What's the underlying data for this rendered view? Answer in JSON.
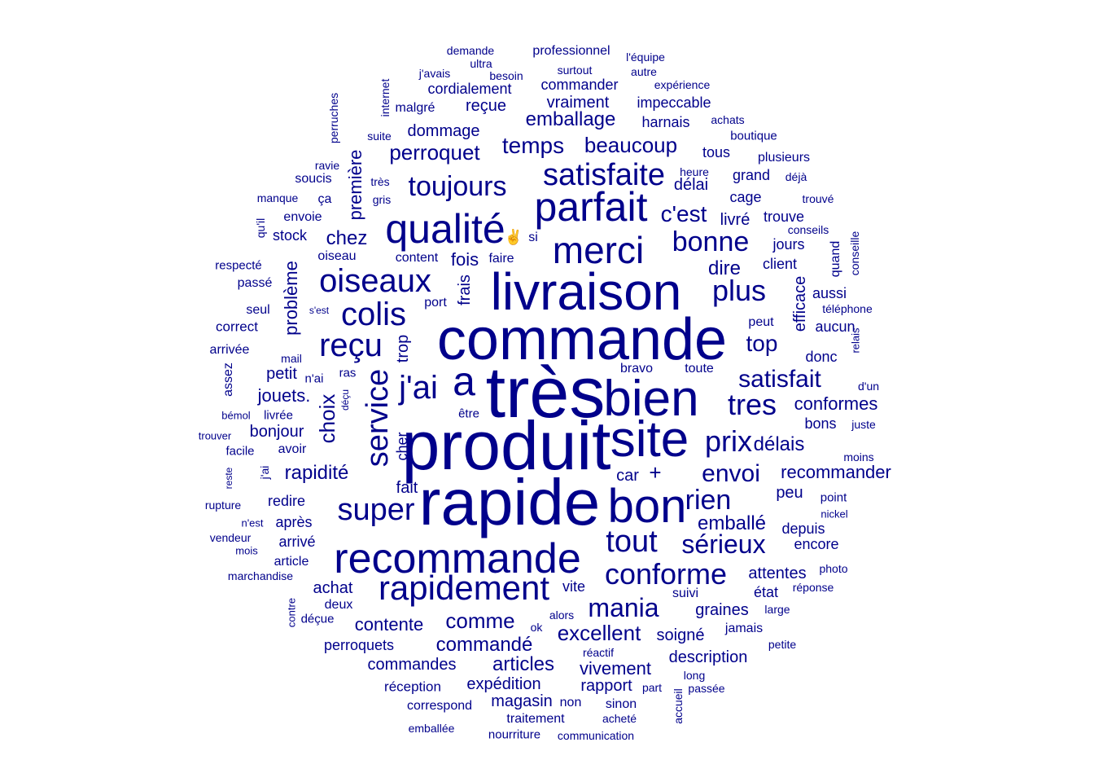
{
  "colors": {
    "word": "#00008B",
    "background": "#FFFFFF"
  },
  "words": [
    "très",
    "produit",
    "commande",
    "livraison",
    "rapide",
    "bien",
    "site",
    "bon",
    "recommande",
    "qualité",
    "parfait",
    "merci",
    "a",
    "rapidement",
    "service",
    "colis",
    "oiseaux",
    "j'ai",
    "reçu",
    "satisfaite",
    "toujours",
    "tout",
    "conforme",
    "super",
    "bonne",
    "plus",
    "tres",
    "prix",
    "rien",
    "mania",
    "sérieux",
    "envoi",
    "satisfait",
    "c'est",
    "temps",
    "beaucoup",
    "top",
    "perroquet",
    "chez",
    "rapidité",
    "choix",
    "emballage",
    "comme",
    "excellent",
    "articles",
    "commandé",
    "dire",
    "emballé",
    "fois",
    "frais",
    "délais",
    "recommander",
    "conformes",
    "contente",
    "jouets.",
    "vivement",
    "expédition",
    "graines",
    "commandes",
    "description",
    "rapport",
    "délai",
    "peu",
    "attentes",
    "dommage",
    "reçue",
    "vraiment",
    "impeccable",
    "harnais",
    "cordialement",
    "commander",
    "professionnel",
    "+",
    "efficace",
    "problème",
    "première",
    "cher",
    "trop",
    "magasin",
    "livré",
    "cage",
    "grand",
    "trouve",
    "jours",
    "client",
    "aussi",
    "aucun",
    "donc",
    "bons",
    "depuis",
    "encore",
    "état",
    "soigné",
    "vite",
    "achat",
    "bonjour",
    "petit",
    "après",
    "redire",
    "fait",
    "car",
    "arrivé",
    "article",
    "deux",
    "perroquets",
    "réception",
    "correspond",
    "non",
    "sinon",
    "traitement",
    "acheté",
    "nourriture",
    "communication",
    "emballée",
    "stock",
    "envoie",
    "soucis",
    "ça",
    "seul",
    "correct",
    "arrivée",
    "passé",
    "respecté",
    "oiseau",
    "content",
    "faire",
    "port",
    "si",
    "tous",
    "heure",
    "plusieurs",
    "boutique",
    "achats",
    "expérience",
    "autre",
    "l'équipe",
    "surtout",
    "besoin",
    "ultra",
    "demande",
    "j'avais",
    "malgré",
    "internet",
    "perruches",
    "suite",
    "très",
    "gris",
    "manque",
    "ravie",
    "qu'il",
    "mail",
    "s'est",
    "assez",
    "n'ai",
    "ras",
    "déçu",
    "livrée",
    "bémol",
    "trouver",
    "facile",
    "avoir",
    "j'ai",
    "reste",
    "rupture",
    "n'est",
    "vendeur",
    "mois",
    "marchandise",
    "contre",
    "déçue",
    "ok",
    "alors",
    "réactif",
    "long",
    "part",
    "passée",
    "accueil",
    "suivi",
    "jamais",
    "petite",
    "large",
    "réponse",
    "photo",
    "nickel",
    "point",
    "moins",
    "juste",
    "d'un",
    "relais",
    "téléphone",
    "conseille",
    "quand",
    "conseils",
    "trouvé",
    "déjà",
    "peut",
    "bravo",
    "toute",
    "être",
    "✌"
  ]
}
